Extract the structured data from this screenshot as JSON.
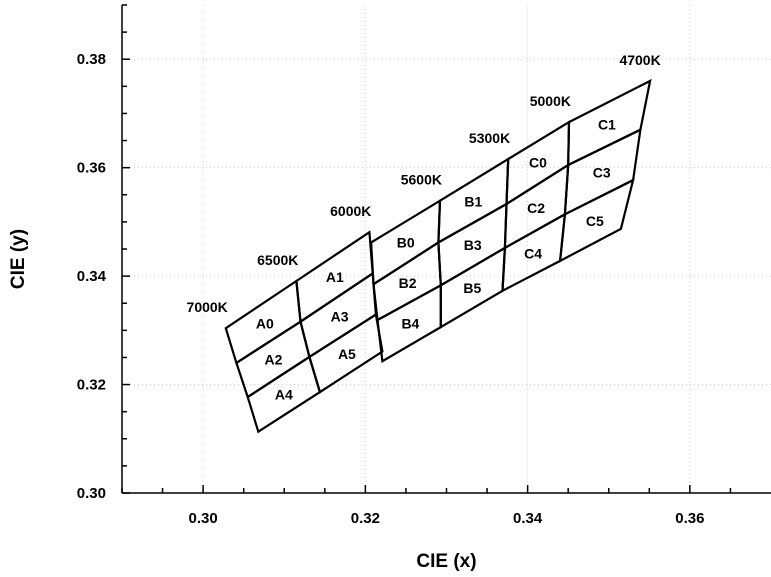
{
  "chart_data": {
    "type": "line",
    "title": "",
    "xlabel": "CIE (x)",
    "ylabel": "CIE (y)",
    "xlim": [
      0.29,
      0.37
    ],
    "ylim": [
      0.3,
      0.39
    ],
    "x_ticks": [
      0.3,
      0.32,
      0.34,
      0.36
    ],
    "x_tick_labels": [
      "0.30",
      "0.32",
      "0.34",
      "0.36"
    ],
    "y_ticks": [
      0.3,
      0.32,
      0.34,
      0.36,
      0.38
    ],
    "y_tick_labels": [
      "0.30",
      "0.32",
      "0.34",
      "0.36",
      "0.38"
    ],
    "grid": true,
    "color_temperature_lines": [
      {
        "label": "7000K",
        "top": [
          0.3028,
          0.3304
        ],
        "bottom": [
          0.3068,
          0.3113
        ]
      },
      {
        "label": "6500K",
        "top": [
          0.3115,
          0.3391
        ],
        "bottom": [
          0.3144,
          0.3186
        ]
      },
      {
        "label": "6000K",
        "top": [
          0.3205,
          0.3481
        ],
        "bottom": [
          0.3221,
          0.3261
        ]
      },
      {
        "label": "5600K",
        "top": [
          0.3292,
          0.3539
        ],
        "bottom": [
          0.3293,
          0.3306
        ]
      },
      {
        "label": "5300K",
        "top": [
          0.3376,
          0.3616
        ],
        "bottom": [
          0.3369,
          0.3373
        ]
      },
      {
        "label": "5000K",
        "top": [
          0.3451,
          0.3684
        ],
        "bottom": [
          0.344,
          0.3428
        ]
      },
      {
        "label": "4700K",
        "top": [
          0.3551,
          0.376
        ],
        "bottom": [
          0.3515,
          0.3487
        ]
      }
    ],
    "bins": [
      {
        "name": "A0",
        "polygon": [
          [
            0.3028,
            0.3304
          ],
          [
            0.3115,
            0.3391
          ],
          [
            0.312,
            0.3316
          ],
          [
            0.3041,
            0.324
          ]
        ]
      },
      {
        "name": "A1",
        "polygon": [
          [
            0.3115,
            0.3391
          ],
          [
            0.3205,
            0.3481
          ],
          [
            0.3209,
            0.3405
          ],
          [
            0.312,
            0.3316
          ]
        ]
      },
      {
        "name": "A2",
        "polygon": [
          [
            0.3041,
            0.324
          ],
          [
            0.312,
            0.3316
          ],
          [
            0.3131,
            0.3251
          ],
          [
            0.3055,
            0.3177
          ]
        ]
      },
      {
        "name": "A3",
        "polygon": [
          [
            0.312,
            0.3316
          ],
          [
            0.3209,
            0.3405
          ],
          [
            0.3213,
            0.3329
          ],
          [
            0.3131,
            0.3251
          ]
        ]
      },
      {
        "name": "A4",
        "polygon": [
          [
            0.3055,
            0.3177
          ],
          [
            0.3131,
            0.3251
          ],
          [
            0.3144,
            0.3186
          ],
          [
            0.3068,
            0.3113
          ]
        ]
      },
      {
        "name": "A5",
        "polygon": [
          [
            0.3131,
            0.3251
          ],
          [
            0.3213,
            0.3329
          ],
          [
            0.3221,
            0.3261
          ],
          [
            0.3144,
            0.3186
          ]
        ]
      },
      {
        "name": "B0",
        "polygon": [
          [
            0.3207,
            0.3462
          ],
          [
            0.3292,
            0.3539
          ],
          [
            0.329,
            0.3462
          ],
          [
            0.321,
            0.3385
          ]
        ]
      },
      {
        "name": "B1",
        "polygon": [
          [
            0.3292,
            0.3539
          ],
          [
            0.3376,
            0.3616
          ],
          [
            0.3374,
            0.3533
          ],
          [
            0.329,
            0.3462
          ]
        ]
      },
      {
        "name": "B2",
        "polygon": [
          [
            0.321,
            0.3385
          ],
          [
            0.329,
            0.3462
          ],
          [
            0.3293,
            0.3383
          ],
          [
            0.3215,
            0.3319
          ]
        ]
      },
      {
        "name": "B3",
        "polygon": [
          [
            0.329,
            0.3462
          ],
          [
            0.3374,
            0.3533
          ],
          [
            0.3372,
            0.3452
          ],
          [
            0.3293,
            0.3383
          ]
        ]
      },
      {
        "name": "B4",
        "polygon": [
          [
            0.3215,
            0.3319
          ],
          [
            0.3293,
            0.3383
          ],
          [
            0.3293,
            0.3306
          ],
          [
            0.3221,
            0.3243
          ]
        ]
      },
      {
        "name": "B5",
        "polygon": [
          [
            0.3293,
            0.3383
          ],
          [
            0.3372,
            0.3452
          ],
          [
            0.3369,
            0.3373
          ],
          [
            0.3293,
            0.3306
          ]
        ]
      },
      {
        "name": "C0",
        "polygon": [
          [
            0.3376,
            0.3616
          ],
          [
            0.3451,
            0.3684
          ],
          [
            0.345,
            0.3605
          ],
          [
            0.3374,
            0.3533
          ]
        ]
      },
      {
        "name": "C1",
        "polygon": [
          [
            0.3451,
            0.3684
          ],
          [
            0.3551,
            0.376
          ],
          [
            0.3539,
            0.367
          ],
          [
            0.345,
            0.3605
          ]
        ]
      },
      {
        "name": "C2",
        "polygon": [
          [
            0.3374,
            0.3533
          ],
          [
            0.345,
            0.3605
          ],
          [
            0.3446,
            0.3514
          ],
          [
            0.3372,
            0.3452
          ]
        ]
      },
      {
        "name": "C3",
        "polygon": [
          [
            0.345,
            0.3605
          ],
          [
            0.3539,
            0.367
          ],
          [
            0.353,
            0.3577
          ],
          [
            0.3446,
            0.3514
          ]
        ]
      },
      {
        "name": "C4",
        "polygon": [
          [
            0.3372,
            0.3452
          ],
          [
            0.3446,
            0.3514
          ],
          [
            0.344,
            0.3428
          ],
          [
            0.3369,
            0.3373
          ]
        ]
      },
      {
        "name": "C5",
        "polygon": [
          [
            0.3446,
            0.3514
          ],
          [
            0.353,
            0.3577
          ],
          [
            0.3515,
            0.3487
          ],
          [
            0.344,
            0.3428
          ]
        ]
      }
    ]
  }
}
